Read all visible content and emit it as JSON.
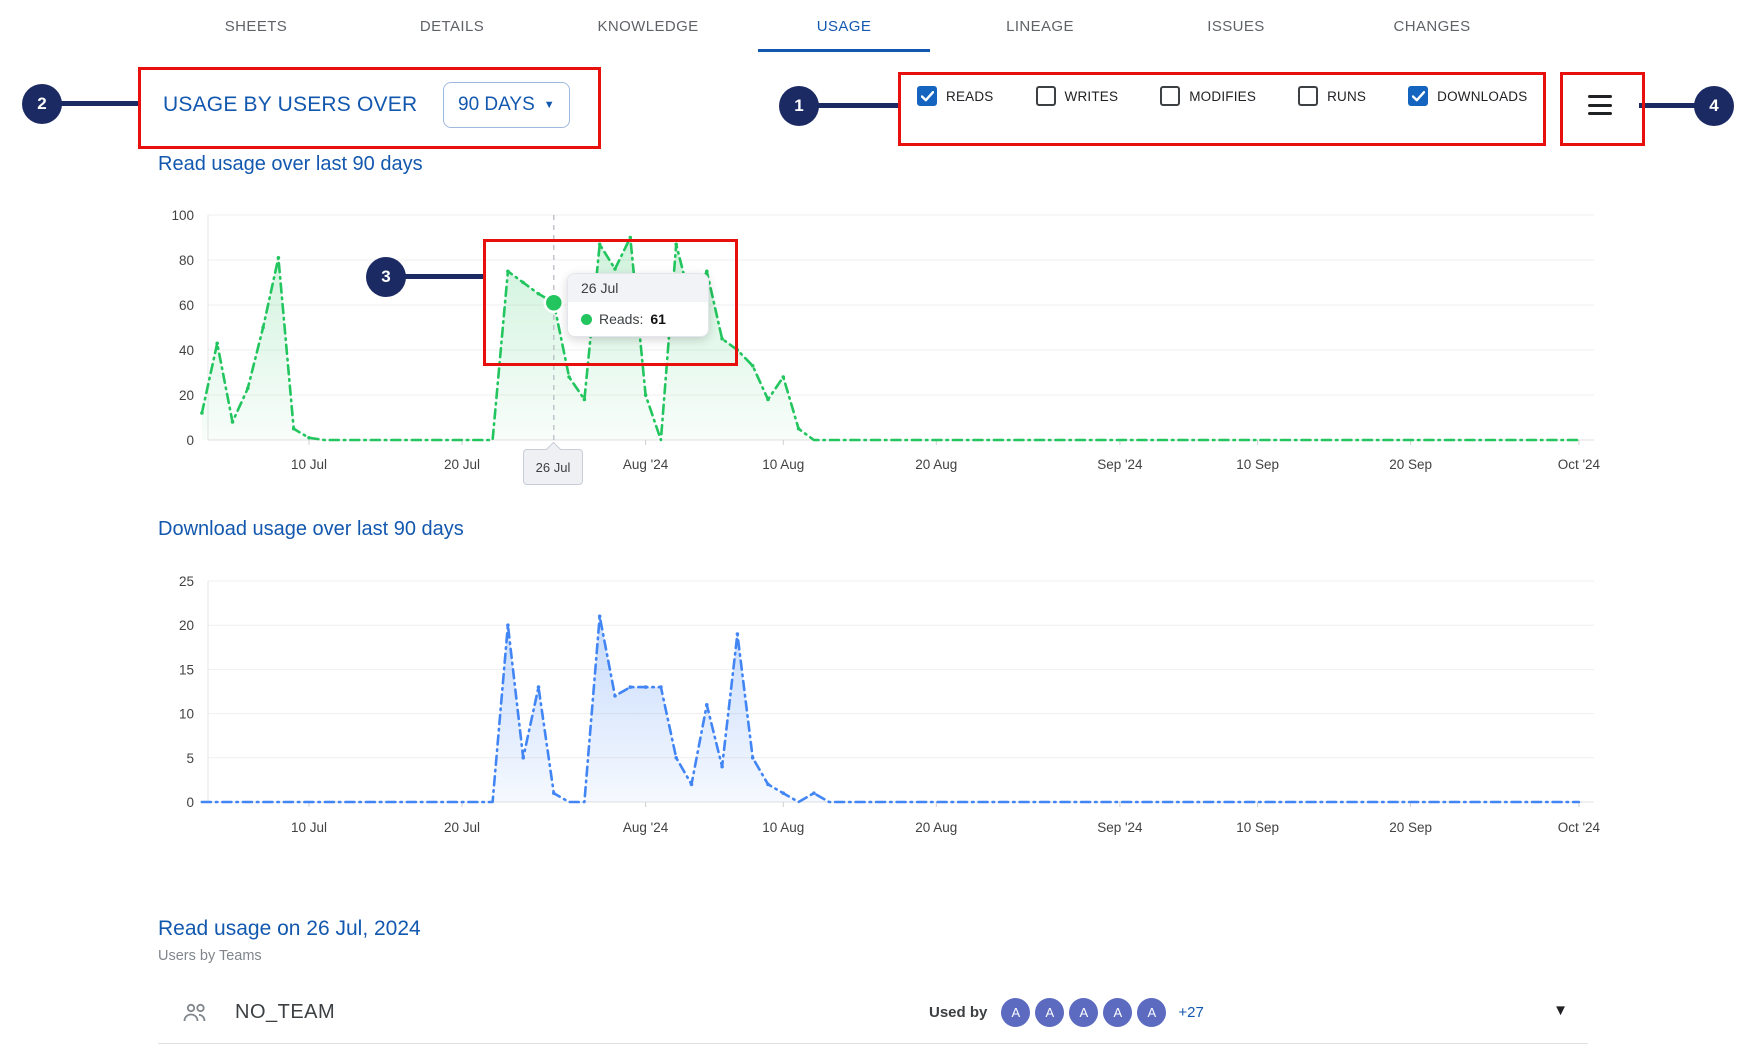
{
  "tabs": {
    "items": [
      {
        "label": "SHEETS",
        "active": false
      },
      {
        "label": "DETAILS",
        "active": false
      },
      {
        "label": "KNOWLEDGE",
        "active": false
      },
      {
        "label": "USAGE",
        "active": true
      },
      {
        "label": "LINEAGE",
        "active": false
      },
      {
        "label": "ISSUES",
        "active": false
      },
      {
        "label": "CHANGES",
        "active": false
      }
    ]
  },
  "header": {
    "title": "USAGE BY USERS OVER",
    "range_selector": {
      "value": "90 DAYS",
      "caret": "▼"
    }
  },
  "filters": {
    "items": [
      {
        "label": "READS",
        "checked": true
      },
      {
        "label": "WRITES",
        "checked": false
      },
      {
        "label": "MODIFIES",
        "checked": false
      },
      {
        "label": "RUNS",
        "checked": false
      },
      {
        "label": "DOWNLOADS",
        "checked": true
      }
    ]
  },
  "annotations": {
    "callouts": [
      {
        "label": "1"
      },
      {
        "label": "2"
      },
      {
        "label": "3"
      },
      {
        "label": "4"
      }
    ]
  },
  "tooltip": {
    "date": "26 Jul",
    "series_label": "Reads:",
    "value": "61"
  },
  "axis_marker": {
    "label": "26 Jul"
  },
  "chart_data": [
    {
      "type": "area",
      "title": "Read usage over last 90 days",
      "series_name": "Reads",
      "color": "#22c55e",
      "ylim": [
        0,
        100
      ],
      "yticks": [
        0,
        20,
        40,
        60,
        80,
        100
      ],
      "x_day_origin": "day 1 = 1 Jul 2024",
      "xticks": [
        {
          "day": 10,
          "label": "10 Jul"
        },
        {
          "day": 20,
          "label": "20 Jul"
        },
        {
          "day": 32,
          "label": "Aug '24"
        },
        {
          "day": 41,
          "label": "10 Aug"
        },
        {
          "day": 51,
          "label": "20 Aug"
        },
        {
          "day": 63,
          "label": "Sep '24"
        },
        {
          "day": 72,
          "label": "10 Sep"
        },
        {
          "day": 82,
          "label": "20 Sep"
        },
        {
          "day": 93,
          "label": "Oct '24"
        }
      ],
      "start_day": 3,
      "values": [
        12,
        43,
        8,
        23,
        50,
        81,
        5,
        1,
        0,
        0,
        0,
        0,
        0,
        0,
        0,
        0,
        0,
        0,
        0,
        0,
        75,
        70,
        65,
        61,
        28,
        18,
        87,
        76,
        90,
        20,
        0,
        87,
        60,
        75,
        45,
        40,
        33,
        18,
        28,
        5,
        0,
        0,
        0,
        0,
        0,
        0,
        0,
        0,
        0,
        0,
        0,
        0,
        0,
        0,
        0,
        0,
        0,
        0,
        0,
        0,
        0,
        0,
        0,
        0,
        0,
        0,
        0,
        0,
        0,
        0,
        0,
        0,
        0,
        0,
        0,
        0,
        0,
        0,
        0,
        0,
        0,
        0,
        0,
        0,
        0,
        0,
        0,
        0,
        0,
        0,
        0
      ],
      "highlight": {
        "day": 26,
        "value": 61,
        "label": "26 Jul"
      }
    },
    {
      "type": "area",
      "title": "Download usage over last 90 days",
      "series_name": "Downloads",
      "color": "#4285f4",
      "ylim": [
        0,
        25
      ],
      "yticks": [
        0,
        5,
        10,
        15,
        20,
        25
      ],
      "x_day_origin": "day 1 = 1 Jul 2024",
      "xticks": [
        {
          "day": 10,
          "label": "10 Jul"
        },
        {
          "day": 20,
          "label": "20 Jul"
        },
        {
          "day": 32,
          "label": "Aug '24"
        },
        {
          "day": 41,
          "label": "10 Aug"
        },
        {
          "day": 51,
          "label": "20 Aug"
        },
        {
          "day": 63,
          "label": "Sep '24"
        },
        {
          "day": 72,
          "label": "10 Sep"
        },
        {
          "day": 82,
          "label": "20 Sep"
        },
        {
          "day": 93,
          "label": "Oct '24"
        }
      ],
      "start_day": 3,
      "values": [
        0,
        0,
        0,
        0,
        0,
        0,
        0,
        0,
        0,
        0,
        0,
        0,
        0,
        0,
        0,
        0,
        0,
        0,
        0,
        0,
        20,
        5,
        13,
        1,
        0,
        0,
        21,
        12,
        13,
        13,
        13,
        5,
        2,
        11,
        4,
        19,
        5,
        2,
        1,
        0,
        1,
        0,
        0,
        0,
        0,
        0,
        0,
        0,
        0,
        0,
        0,
        0,
        0,
        0,
        0,
        0,
        0,
        0,
        0,
        0,
        0,
        0,
        0,
        0,
        0,
        0,
        0,
        0,
        0,
        0,
        0,
        0,
        0,
        0,
        0,
        0,
        0,
        0,
        0,
        0,
        0,
        0,
        0,
        0,
        0,
        0,
        0,
        0,
        0,
        0,
        0
      ],
      "highlight": null
    }
  ],
  "bottom": {
    "title": "Read usage on 26 Jul, 2024",
    "subtitle": "Users by Teams",
    "team": {
      "name": "NO_TEAM",
      "used_by_label": "Used by",
      "avatars": [
        "A",
        "A",
        "A",
        "A",
        "A"
      ],
      "more": "+27"
    }
  },
  "colors": {
    "accent_blue": "#1358af",
    "checkbox_blue": "#1565c0",
    "reads_green": "#22c55e",
    "downloads_blue": "#4285f4",
    "annotation_red": "#e8100c",
    "callout_navy": "#1b2a63",
    "avatar_indigo": "#5c6bc0"
  }
}
